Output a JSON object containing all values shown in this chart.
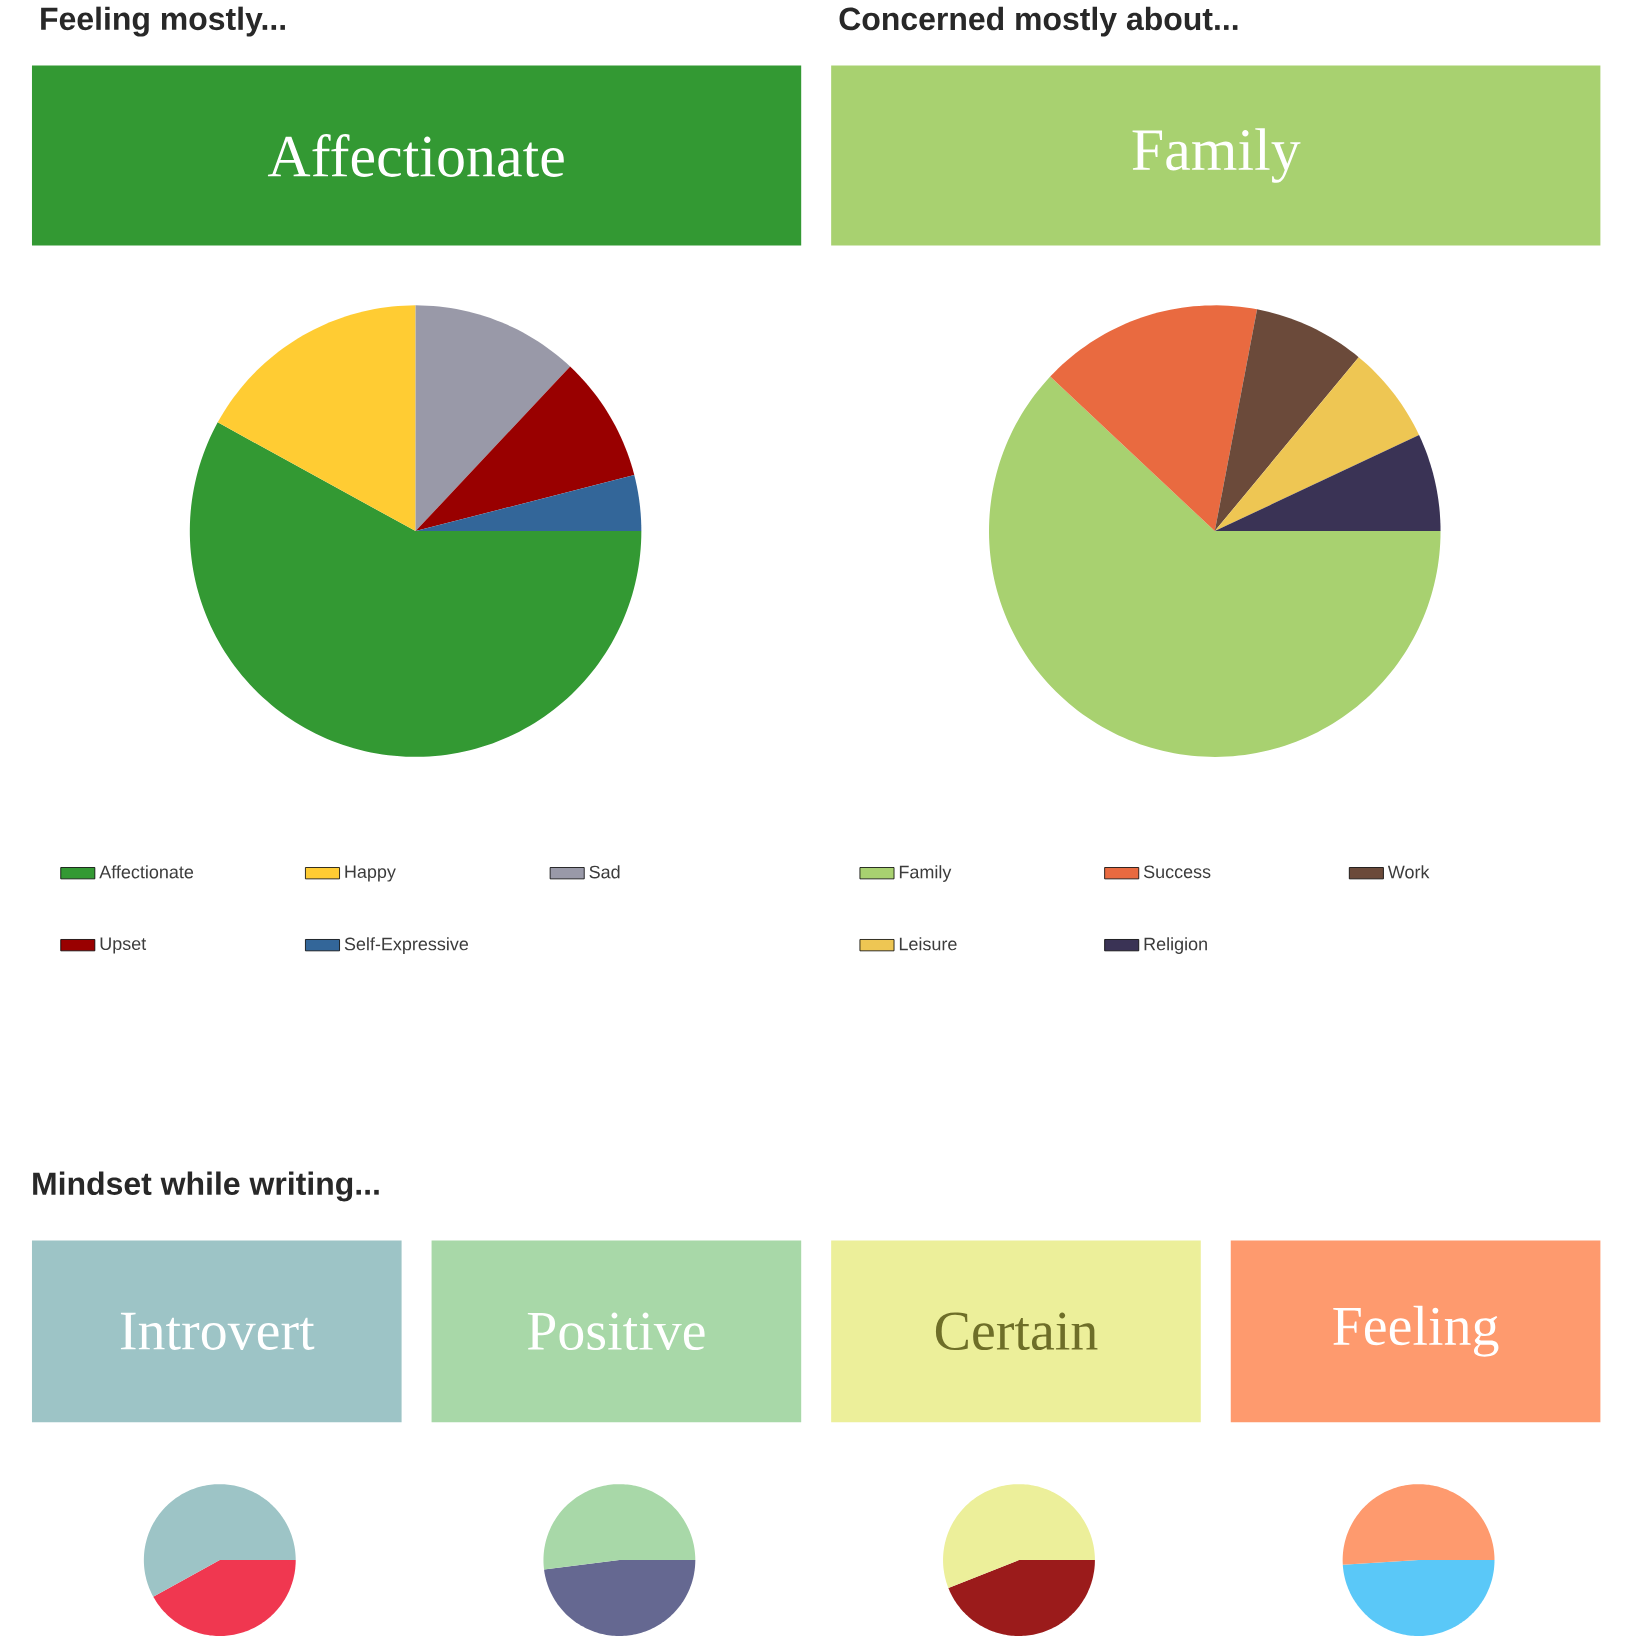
{
  "chart_data": [
    {
      "type": "pie",
      "title": "Feeling mostly...",
      "subtitle": "Affectionate",
      "categories": [
        "Affectionate",
        "Happy",
        "Sad",
        "Upset",
        "Self-Expressive"
      ],
      "values": [
        58,
        17,
        12,
        9,
        4
      ],
      "colors": [
        "#339933",
        "#ffcc33",
        "#9999a8",
        "#990000",
        "#336699"
      ],
      "legend": "bottom"
    },
    {
      "type": "pie",
      "title": "Concerned mostly about...",
      "subtitle": "Family",
      "categories": [
        "Family",
        "Success",
        "Work",
        "Leisure",
        "Religion"
      ],
      "values": [
        62,
        16,
        8,
        7,
        7
      ],
      "colors": [
        "#a8d170",
        "#e96a40",
        "#6b4a3a",
        "#eec653",
        "#3a3355"
      ],
      "legend": "bottom"
    },
    {
      "type": "pie",
      "title": "Mindset while writing...",
      "subtitle": "Introvert",
      "categories": [
        null,
        null
      ],
      "values": [
        42,
        58
      ],
      "colors": [
        "#f03750",
        "#9dc4c6"
      ]
    },
    {
      "type": "pie",
      "subtitle": "Positive",
      "categories": [
        null,
        null
      ],
      "values": [
        48,
        52
      ],
      "colors": [
        "#656891",
        "#a8d8a8"
      ]
    },
    {
      "type": "pie",
      "subtitle": "Certain",
      "categories": [
        null,
        null
      ],
      "values": [
        44,
        56
      ],
      "colors": [
        "#9b1b1b",
        "#ecef9a"
      ]
    },
    {
      "type": "pie",
      "subtitle": "Feeling",
      "categories": [
        null,
        null
      ],
      "values": [
        49,
        51
      ],
      "colors": [
        "#5ac8f8",
        "#fe9a6e"
      ]
    }
  ]
}
